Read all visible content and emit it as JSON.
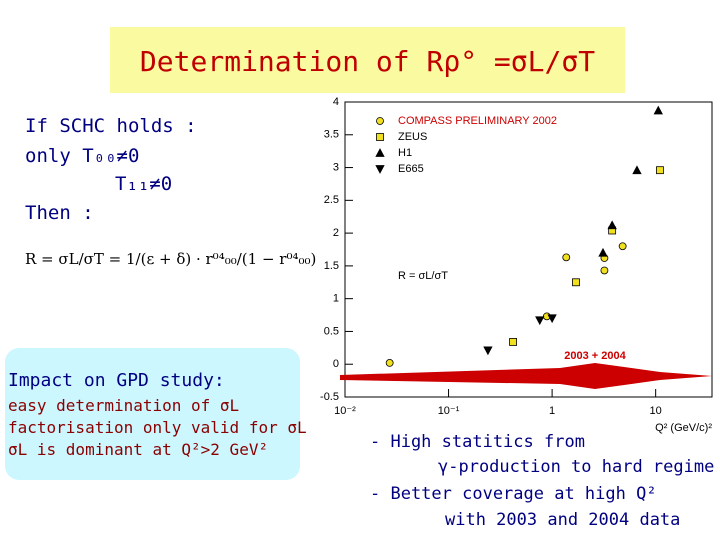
{
  "header": {
    "title": "Determination of Rρ° =σL/σT"
  },
  "left": {
    "lines": [
      "If SCHC holds :",
      "only  T₀₀≠0",
      "T₁₁≠0",
      "Then :"
    ],
    "formula": "R = σL/σT = 1/(ε + δ) · r⁰⁴₀₀/(1 − r⁰⁴₀₀)"
  },
  "impact": {
    "title": "Impact on GPD study:",
    "lines": [
      "easy determination of σL",
      "factorisation only valid for σL",
      "σL is dominant at Q²>2 GeV²"
    ]
  },
  "bottom_right": {
    "lines": [
      "- High statitics from",
      "γ-production to hard regime",
      "- Better coverage at high Q²",
      "with 2003 and 2004 data"
    ]
  },
  "chart_data": {
    "type": "scatter",
    "x_label": "Q² (GeV/c)²",
    "log_x": true,
    "xlim": [
      0.01,
      35
    ],
    "ylim": [
      -0.5,
      4
    ],
    "xticks": [
      {
        "value": 0.01,
        "label": "10⁻²"
      },
      {
        "value": 0.1,
        "label": "10⁻¹"
      },
      1,
      10
    ],
    "yticks": [
      -0.5,
      0,
      0.5,
      1,
      1.5,
      2,
      2.5,
      3,
      3.5,
      4
    ],
    "annotations": [
      "R = σL/σT",
      "2003 + 2004"
    ],
    "series": [
      {
        "name": "COMPASS PRELIMINARY 2002",
        "color": "#f0e020",
        "marker": "circle",
        "x": [
          0.027,
          0.89,
          1.37,
          3.2,
          3.2,
          4.8
        ],
        "values": [
          0.02,
          0.73,
          1.63,
          1.43,
          1.62,
          1.8
        ]
      },
      {
        "name": "ZEUS",
        "color": "#f0e020",
        "marker": "square",
        "x": [
          0.42,
          1.7,
          3.8,
          11
        ],
        "values": [
          0.34,
          1.25,
          2.04,
          2.96
        ]
      },
      {
        "name": "H1",
        "color": "#000000",
        "marker": "triangle-up",
        "x": [
          3.1,
          3.8,
          6.6,
          10.6
        ],
        "values": [
          1.7,
          2.12,
          2.96,
          3.87
        ]
      },
      {
        "name": "E665",
        "color": "#000000",
        "marker": "triangle-down",
        "x": [
          0.24,
          0.76,
          1.0
        ],
        "values": [
          0.21,
          0.67,
          0.7
        ]
      }
    ]
  }
}
